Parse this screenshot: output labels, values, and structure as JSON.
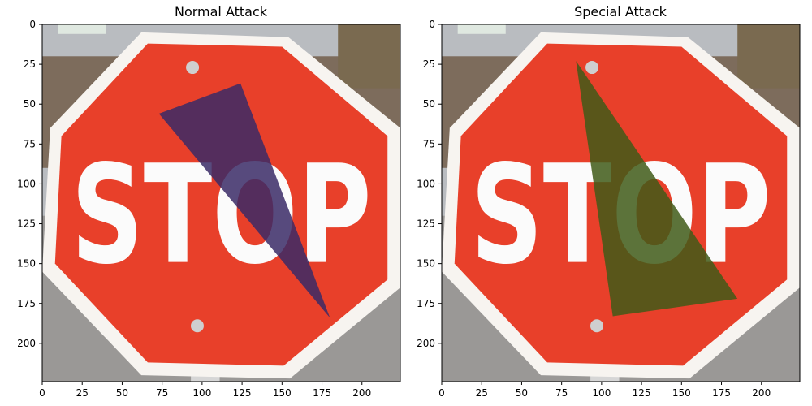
{
  "figure": {
    "panels": [
      {
        "title": "Normal Attack",
        "sign_text": "STOP",
        "patch_color": "#3a2a66",
        "patch_points": [
          [
            73,
            56
          ],
          [
            124,
            37
          ],
          [
            180,
            184
          ]
        ]
      },
      {
        "title": "Special Attack",
        "sign_text": "STOP",
        "patch_color": "#3f5a18",
        "patch_points": [
          [
            84,
            23
          ],
          [
            185,
            172
          ],
          [
            107,
            183
          ]
        ]
      }
    ],
    "image_size": [
      224,
      224
    ],
    "x_ticks": [
      0,
      25,
      50,
      75,
      100,
      125,
      150,
      175,
      200
    ],
    "y_ticks": [
      0,
      25,
      50,
      75,
      100,
      125,
      150,
      175,
      200
    ],
    "colors": {
      "sign_red": "#e8402a",
      "sign_border": "#f7f4f0",
      "letters": "#fbfbfb",
      "sky": "#b9bcc0",
      "house": "#7d6c5c",
      "road": "#9a9896"
    }
  }
}
